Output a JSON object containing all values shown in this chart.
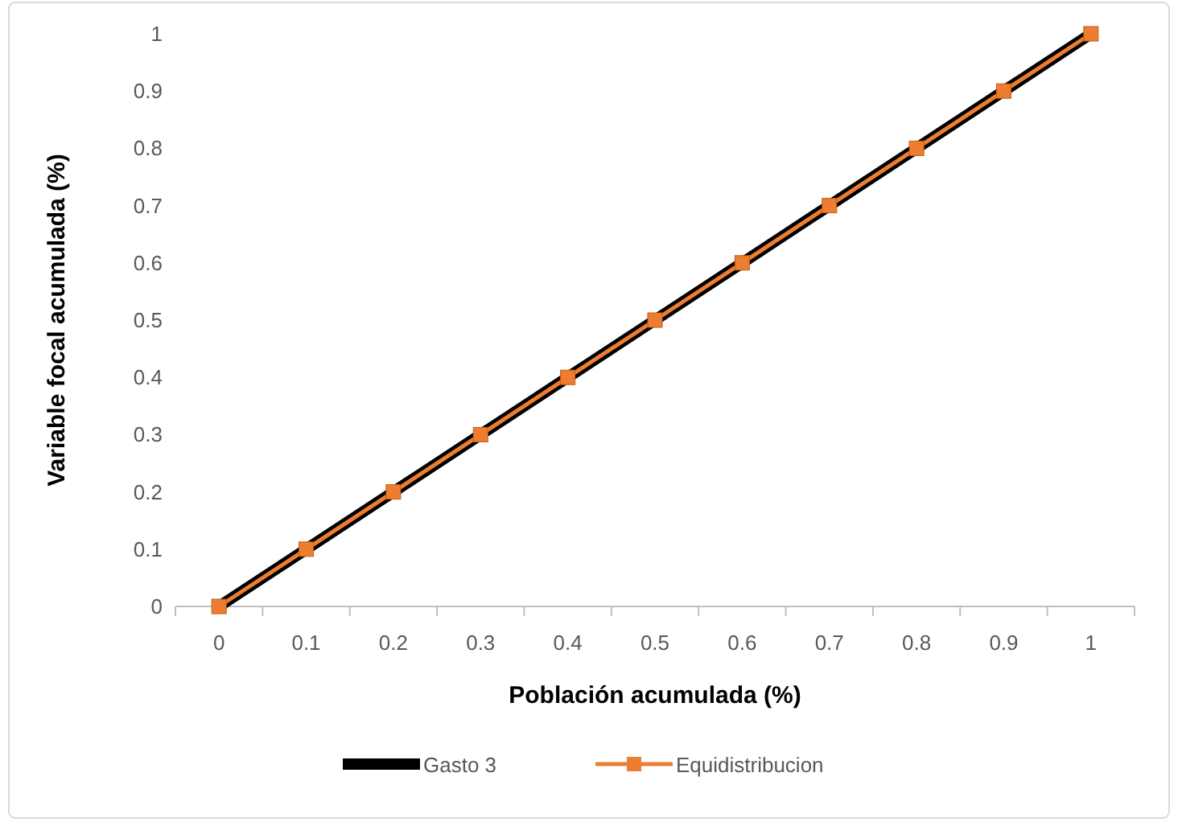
{
  "chart_data": {
    "type": "line",
    "xlabel": "Población acumulada (%)",
    "ylabel": "Variable focal acumulada (%)",
    "categories": [
      "0",
      "0.1",
      "0.2",
      "0.3",
      "0.4",
      "0.5",
      "0.6",
      "0.7",
      "0.8",
      "0.9",
      "1"
    ],
    "series": [
      {
        "name": "Gasto 3",
        "color": "#000000",
        "marker": "none",
        "values": [
          0,
          0.1,
          0.2,
          0.3,
          0.4,
          0.5,
          0.6,
          0.7,
          0.8,
          0.9,
          1
        ]
      },
      {
        "name": "Equidistribucion",
        "color": "#ed7d31",
        "marker": "square",
        "values": [
          0,
          0.1,
          0.2,
          0.3,
          0.4,
          0.5,
          0.6,
          0.7,
          0.8,
          0.9,
          1
        ]
      }
    ],
    "ylim": [
      0,
      1
    ],
    "yticks": [
      0,
      0.1,
      0.2,
      0.3,
      0.4,
      0.5,
      0.6,
      0.7,
      0.8,
      0.9,
      1
    ],
    "grid": false,
    "legend": "bottom",
    "line_style": "solid"
  }
}
